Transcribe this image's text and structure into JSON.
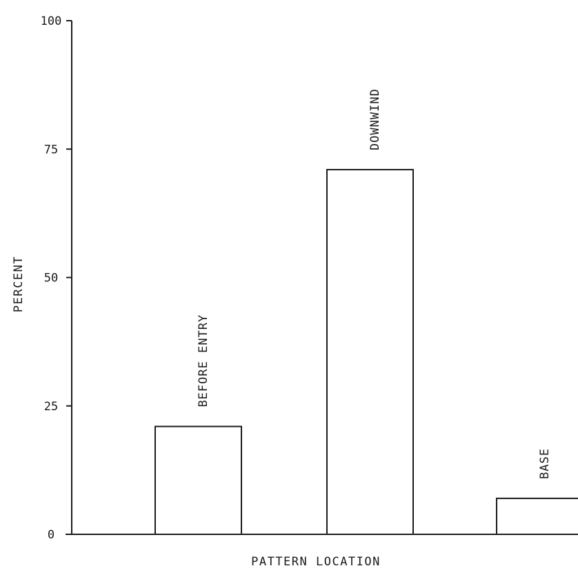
{
  "chart_data": {
    "type": "bar",
    "categories": [
      "BEFORE ENTRY",
      "DOWNWIND",
      "BASE"
    ],
    "values": [
      21,
      71,
      7
    ],
    "xlabel": "PATTERN LOCATION",
    "ylabel": "PERCENT",
    "ylim": [
      0,
      100
    ],
    "yticks": [
      0,
      25,
      50,
      75,
      100
    ],
    "ytick_labels": [
      "0",
      "25",
      "50",
      "75",
      "100"
    ],
    "grid": false,
    "legend": "none",
    "bar_fill": "#ffffff",
    "line_color": "#1a1a1a"
  }
}
